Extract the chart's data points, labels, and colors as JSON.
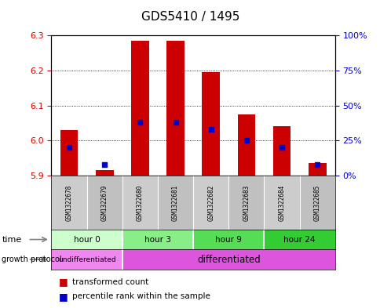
{
  "title": "GDS5410 / 1495",
  "samples": [
    "GSM1322678",
    "GSM1322679",
    "GSM1322680",
    "GSM1322681",
    "GSM1322682",
    "GSM1322683",
    "GSM1322684",
    "GSM1322685"
  ],
  "transformed_counts": [
    6.03,
    5.915,
    6.285,
    6.285,
    6.195,
    6.075,
    6.04,
    5.935
  ],
  "percentile_ranks": [
    20,
    8,
    38,
    38,
    33,
    25,
    20,
    8
  ],
  "ylim_left": [
    5.9,
    6.3
  ],
  "ylim_right": [
    0,
    100
  ],
  "left_ticks": [
    5.9,
    6.0,
    6.1,
    6.2,
    6.3
  ],
  "right_ticks": [
    0,
    25,
    50,
    75,
    100
  ],
  "right_tick_labels": [
    "0%",
    "25%",
    "50%",
    "75%",
    "100%"
  ],
  "bar_color": "#cc0000",
  "blue_color": "#0000cc",
  "time_groups": [
    {
      "label": "hour 0",
      "start": 0,
      "end": 2,
      "color": "#ccffcc"
    },
    {
      "label": "hour 3",
      "start": 2,
      "end": 4,
      "color": "#88ee88"
    },
    {
      "label": "hour 9",
      "start": 4,
      "end": 6,
      "color": "#55dd55"
    },
    {
      "label": "hour 24",
      "start": 6,
      "end": 8,
      "color": "#33cc33"
    }
  ],
  "growth_groups": [
    {
      "label": "undifferentiated",
      "start": 0,
      "end": 2,
      "color": "#ee88ee"
    },
    {
      "label": "differentiated",
      "start": 2,
      "end": 8,
      "color": "#dd55dd"
    }
  ],
  "background_color": "#ffffff",
  "left_tick_color": "#cc0000",
  "right_tick_color": "#0000cc"
}
